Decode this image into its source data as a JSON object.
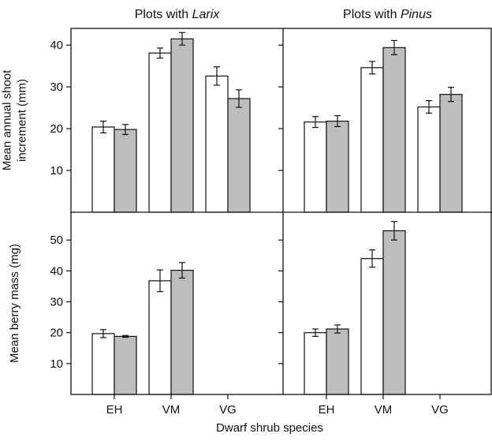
{
  "colors": {
    "series_white_fill": "#ffffff",
    "series_grey_fill": "#bdbdbd",
    "stroke": "#111111",
    "background": "#ffffff"
  },
  "chart_data": {
    "type": "bar",
    "layout": "2x2 panel grid, shared x-axis, error bars on each bar",
    "xlabel": "Dwarf shrub species",
    "categories": [
      "EH",
      "VM",
      "VG"
    ],
    "column_headers": [
      {
        "prefix": "Plots with ",
        "genus": "Larix"
      },
      {
        "prefix": "Plots with ",
        "genus": "Pinus"
      }
    ],
    "rows": [
      {
        "ylabel_lines": [
          "Mean annual shoot",
          "increment (mm)"
        ],
        "ylim": [
          0,
          44
        ],
        "yticks": [
          10,
          20,
          30,
          40
        ],
        "panels": [
          {
            "series": [
              {
                "fill": "white",
                "values": [
                  20.4,
                  38.1,
                  32.6
                ],
                "errors": [
                  1.4,
                  1.2,
                  2.2
                ]
              },
              {
                "fill": "grey",
                "values": [
                  19.8,
                  41.5,
                  27.2
                ],
                "errors": [
                  1.2,
                  1.5,
                  2.1
                ]
              }
            ]
          },
          {
            "series": [
              {
                "fill": "white",
                "values": [
                  21.6,
                  34.6,
                  25.2
                ],
                "errors": [
                  1.3,
                  1.5,
                  1.5
                ]
              },
              {
                "fill": "grey",
                "values": [
                  21.8,
                  39.4,
                  28.2
                ],
                "errors": [
                  1.3,
                  1.7,
                  1.7
                ]
              }
            ]
          }
        ]
      },
      {
        "ylabel_lines": [
          "Mean berry mass (mg)"
        ],
        "ylim": [
          0,
          59
        ],
        "yticks": [
          10,
          20,
          30,
          40,
          50
        ],
        "panels": [
          {
            "series": [
              {
                "fill": "white",
                "values": [
                  19.7,
                  36.8,
                  null
                ],
                "errors": [
                  1.3,
                  3.5,
                  null
                ]
              },
              {
                "fill": "grey",
                "values": [
                  18.8,
                  40.2,
                  null
                ],
                "errors": [
                  0.3,
                  2.5,
                  null
                ]
              }
            ]
          },
          {
            "series": [
              {
                "fill": "white",
                "values": [
                  20.0,
                  44.0,
                  null
                ],
                "errors": [
                  1.2,
                  2.8,
                  null
                ]
              },
              {
                "fill": "grey",
                "values": [
                  21.2,
                  53.0,
                  null
                ],
                "errors": [
                  1.3,
                  3.0,
                  null
                ]
              }
            ]
          }
        ]
      }
    ]
  }
}
